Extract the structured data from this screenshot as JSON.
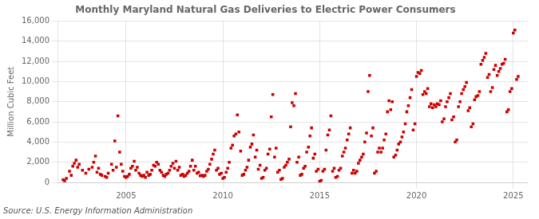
{
  "chart_data": {
    "type": "scatter",
    "title": "Monthly Maryland Natural Gas Deliveries to Electric Power Consumers",
    "y_label": "Million Cubic Feet",
    "annotations": [
      "Source: U.S. Energy Information Administration"
    ],
    "color": "#cc0000",
    "marker": "square",
    "grid": true,
    "xlim": [
      2001.5,
      2025.75
    ],
    "xticks": [
      2005,
      2010,
      2015,
      2020,
      2025
    ],
    "ylim": [
      0,
      16000
    ],
    "yticks": [
      0,
      {
        "value": 2000,
        "label": "2,000"
      },
      {
        "value": 4000,
        "label": "4,000"
      },
      {
        "value": 6000,
        "label": "6,000"
      },
      {
        "value": 8000,
        "label": "8,000"
      },
      {
        "value": 10000,
        "label": "10,000"
      },
      {
        "value": 12000,
        "label": "12,000"
      },
      {
        "value": 14000,
        "label": "14,000"
      },
      {
        "value": 16000,
        "label": "16,000"
      }
    ],
    "x": [
      2001.75,
      2001.92,
      2002.08,
      2002.25,
      2002.42,
      2002.58,
      2002.75,
      2002.92,
      2003.08,
      2003.25,
      2003.42,
      2003.58,
      2003.75,
      2003.92,
      2004.08,
      2004.25,
      2004.42,
      2004.58,
      2004.75,
      2004.92,
      2005.08,
      2005.25,
      2005.42,
      2005.58,
      2005.75,
      2005.92,
      2006.08,
      2006.25,
      2006.42,
      2006.58,
      2006.75,
      2006.92,
      2007.08,
      2007.25,
      2007.42,
      2007.58,
      2007.75,
      2007.92,
      2008.08,
      2008.25,
      2008.42,
      2008.58,
      2008.75,
      2008.92,
      2009.08,
      2009.25,
      2009.42,
      2009.58,
      2009.75,
      2009.92,
      2010.08,
      2010.25,
      2010.42,
      2010.58,
      2010.75,
      2010.92,
      2011.08,
      2011.25,
      2011.42,
      2011.58,
      2011.75,
      2011.92,
      2012.08,
      2012.25,
      2012.42,
      2012.58,
      2012.75,
      2012.92,
      2013.08,
      2013.25,
      2013.42,
      2013.58,
      2013.75,
      2013.92,
      2014.08,
      2014.25,
      2014.42,
      2014.58,
      2014.75,
      2014.92,
      2015.08,
      2015.25,
      2015.42,
      2015.58,
      2015.75,
      2015.92,
      2016.08,
      2016.25,
      2016.42,
      2016.58,
      2016.75,
      2016.92,
      2017.08,
      2017.25,
      2017.42,
      2017.58,
      2017.75,
      2017.92,
      2018.08,
      2018.25,
      2018.42,
      2018.58,
      2018.75,
      2018.92,
      2019.08,
      2019.25,
      2019.42,
      2019.58,
      2019.75,
      2019.92,
      2020.08,
      2020.25,
      2020.42,
      2020.58,
      2020.75,
      2020.92,
      2021.08,
      2021.25,
      2021.42,
      2021.58,
      2021.75,
      2021.92,
      2022.08,
      2022.25,
      2022.42,
      2022.58,
      2022.75,
      2022.92,
      2023.08,
      2023.25,
      2023.42,
      2023.58,
      2023.75,
      2023.92,
      2024.08,
      2024.25,
      2024.42,
      2024.58,
      2024.75,
      2024.92,
      2025.08,
      2025.25,
      2001.83,
      2002.17,
      2002.33,
      2002.5,
      2003.33,
      2003.5,
      2003.67,
      2004.0,
      2004.33,
      2004.5,
      2004.67,
      2004.83,
      2005.0,
      2005.17,
      2005.33,
      2005.5,
      2005.67,
      2005.83,
      2006.0,
      2006.17,
      2006.33,
      2006.5,
      2006.67,
      2006.83,
      2007.0,
      2007.17,
      2007.33,
      2007.5,
      2007.67,
      2007.83,
      2008.0,
      2008.17,
      2008.33,
      2008.5,
      2008.67,
      2008.83,
      2009.0,
      2009.17,
      2009.33,
      2009.5,
      2009.67,
      2009.83,
      2010.0,
      2010.17,
      2010.33,
      2010.5,
      2010.67,
      2010.83,
      2011.0,
      2011.17,
      2011.33,
      2011.5,
      2011.67,
      2011.83,
      2012.0,
      2012.17,
      2012.33,
      2012.5,
      2012.67,
      2012.83,
      2013.0,
      2013.17,
      2013.33,
      2013.5,
      2013.67,
      2013.83,
      2014.0,
      2014.17,
      2014.33,
      2014.5,
      2014.67,
      2014.83,
      2015.0,
      2015.17,
      2015.33,
      2015.5,
      2015.67,
      2015.83,
      2016.0,
      2016.17,
      2016.33,
      2016.5,
      2016.67,
      2016.83,
      2017.0,
      2017.17,
      2017.33,
      2017.5,
      2017.67,
      2017.83,
      2018.0,
      2018.17,
      2018.33,
      2018.5,
      2018.67,
      2018.83,
      2019.0,
      2019.17,
      2019.33,
      2019.5,
      2019.67,
      2019.83,
      2020.0,
      2020.17,
      2020.33,
      2020.5,
      2020.67,
      2020.83,
      2021.0,
      2021.17,
      2021.33,
      2021.5,
      2021.67,
      2021.83,
      2022.0,
      2022.17,
      2022.33,
      2022.5,
      2022.67,
      2022.83,
      2023.0,
      2023.17,
      2023.33,
      2023.5,
      2023.67,
      2023.83,
      2024.0,
      2024.17,
      2024.33,
      2024.5,
      2024.67,
      2024.83,
      2025.0,
      2025.17
    ],
    "values": [
      250,
      400,
      1100,
      1600,
      2200,
      1800,
      1200,
      900,
      1300,
      1500,
      2600,
      1400,
      700,
      600,
      900,
      1800,
      4100,
      6600,
      1800,
      600,
      600,
      1400,
      2100,
      1500,
      700,
      700,
      1000,
      800,
      1700,
      2000,
      1200,
      700,
      800,
      1200,
      1900,
      2100,
      1500,
      800,
      700,
      1100,
      2200,
      1600,
      1000,
      700,
      700,
      1300,
      2300,
      3200,
      1400,
      900,
      500,
      1400,
      3400,
      4600,
      6700,
      3100,
      800,
      1500,
      3500,
      4700,
      3200,
      1700,
      500,
      1400,
      3300,
      8700,
      3400,
      1200,
      400,
      1700,
      2300,
      7900,
      8800,
      2500,
      800,
      1600,
      3500,
      5400,
      2800,
      1300,
      200,
      1300,
      4700,
      6600,
      1400,
      600,
      1400,
      3000,
      4200,
      5400,
      1200,
      1100,
      2200,
      2800,
      4900,
      10600,
      5400,
      1100,
      3400,
      3400,
      4800,
      8100,
      8000,
      2700,
      3800,
      4500,
      5800,
      7600,
      9200,
      5800,
      10900,
      11100,
      9000,
      9300,
      7800,
      7700,
      7800,
      8100,
      6300,
      8000,
      8800,
      6500,
      4200,
      8000,
      9200,
      9900,
      7400,
      5800,
      8500,
      9000,
      12100,
      12800,
      10700,
      9400,
      11600,
      11000,
      11700,
      12200,
      7200,
      9300,
      15100,
      10500,
      150,
      700,
      1900,
      1500,
      2000,
      1000,
      800,
      500,
      1200,
      1500,
      3000,
      1100,
      500,
      800,
      1600,
      1200,
      900,
      600,
      500,
      700,
      1200,
      1600,
      1800,
      1000,
      600,
      900,
      1600,
      1400,
      1200,
      700,
      600,
      900,
      1600,
      1200,
      900,
      650,
      600,
      1100,
      1800,
      2800,
      1200,
      800,
      400,
      1000,
      2000,
      3700,
      4800,
      5000,
      700,
      1200,
      2200,
      3800,
      2500,
      1300,
      400,
      1200,
      2800,
      6500,
      2500,
      1000,
      300,
      1500,
      2000,
      5500,
      7600,
      2000,
      700,
      1400,
      3000,
      4600,
      2400,
      1100,
      100,
      1100,
      3200,
      5200,
      1100,
      500,
      1200,
      2600,
      3400,
      4800,
      900,
      900,
      1900,
      2500,
      4000,
      9000,
      4600,
      900,
      3000,
      3000,
      4200,
      7000,
      7200,
      2500,
      3200,
      4000,
      5000,
      7000,
      8400,
      5200,
      10500,
      10800,
      8700,
      8800,
      7500,
      7400,
      7500,
      7700,
      6000,
      7500,
      8400,
      6200,
      4000,
      7500,
      8800,
      9500,
      7100,
      5500,
      8200,
      8600,
      11700,
      12400,
      10400,
      9000,
      11200,
      10600,
      11300,
      11800,
      7000,
      9000,
      14800,
      10200
    ]
  }
}
